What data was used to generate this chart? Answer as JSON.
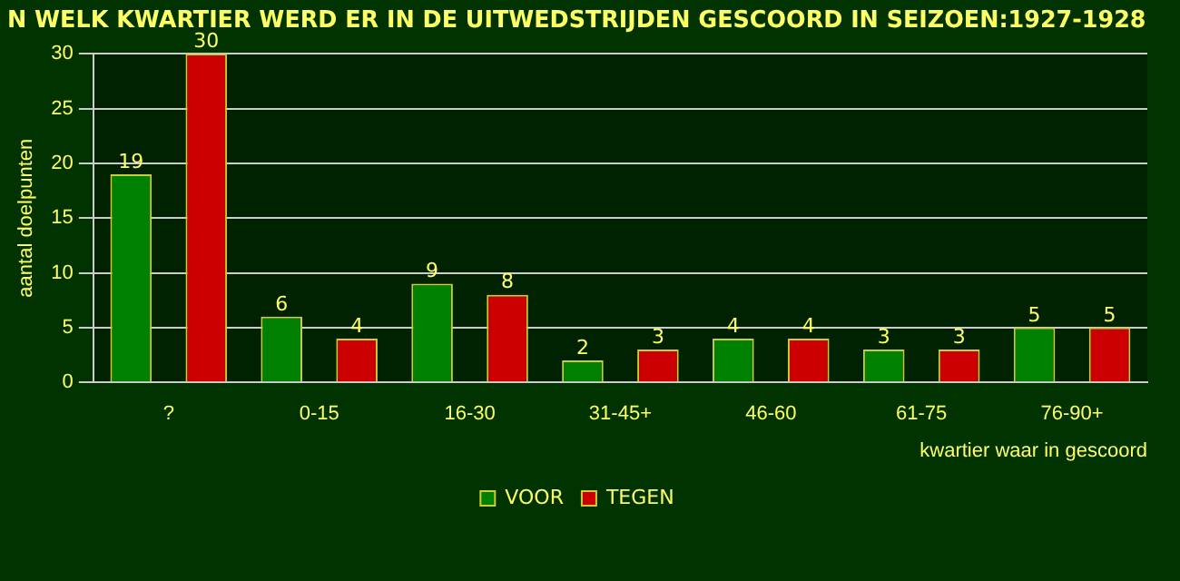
{
  "chart_data": {
    "type": "bar",
    "title": "N WELK KWARTIER WERD ER IN DE UITWEDSTRIJDEN GESCOORD IN SEIZOEN:1927-1928",
    "xlabel": "kwartier waar in gescoord",
    "ylabel": "aantal doelpunten",
    "categories": [
      "?",
      "0-15",
      "16-30",
      "31-45+",
      "46-60",
      "61-75",
      "76-90+"
    ],
    "series": [
      {
        "name": "VOOR",
        "color": "#008000",
        "values": [
          19,
          6,
          9,
          2,
          4,
          3,
          5
        ]
      },
      {
        "name": "TEGEN",
        "color": "#cc0000",
        "values": [
          30,
          4,
          8,
          3,
          4,
          3,
          5
        ]
      }
    ],
    "ylim": [
      0,
      30
    ],
    "yticks": [
      0,
      5,
      10,
      15,
      20,
      25,
      30
    ],
    "grid": "y",
    "legend": "bottom",
    "data_labels": true
  }
}
